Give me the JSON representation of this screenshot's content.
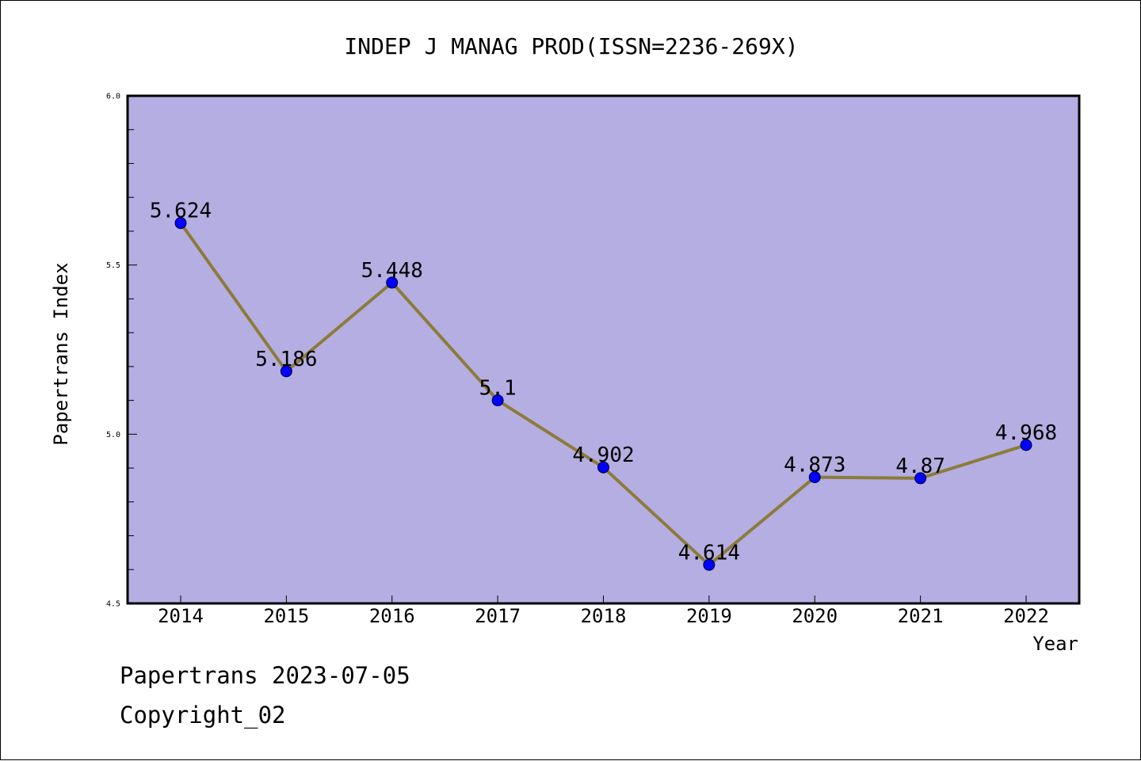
{
  "chart_data": {
    "type": "line",
    "title": "INDEP J MANAG PROD(ISSN=2236-269X)",
    "xlabel": "Year",
    "ylabel": "Papertrans Index",
    "categories": [
      "2014",
      "2015",
      "2016",
      "2017",
      "2018",
      "2019",
      "2020",
      "2021",
      "2022"
    ],
    "values": [
      5.624,
      5.186,
      5.448,
      5.1,
      4.902,
      4.614,
      4.873,
      4.87,
      4.968
    ],
    "data_labels": [
      "5.624",
      "5.186",
      "5.448",
      "5.1",
      "4.902",
      "4.614",
      "4.873",
      "4.87",
      "4.968"
    ],
    "ylim": [
      4.5,
      6.0
    ],
    "y_ticks": [
      "4.5",
      "5.0",
      "5.5",
      "6.0"
    ],
    "grid": false,
    "colors": {
      "plot_background": "#b5aee2",
      "line": "#8c7b3a",
      "marker": "#0000ff"
    }
  },
  "footer": {
    "line1": "Papertrans 2023-07-05",
    "line2": "Copyright_02"
  }
}
